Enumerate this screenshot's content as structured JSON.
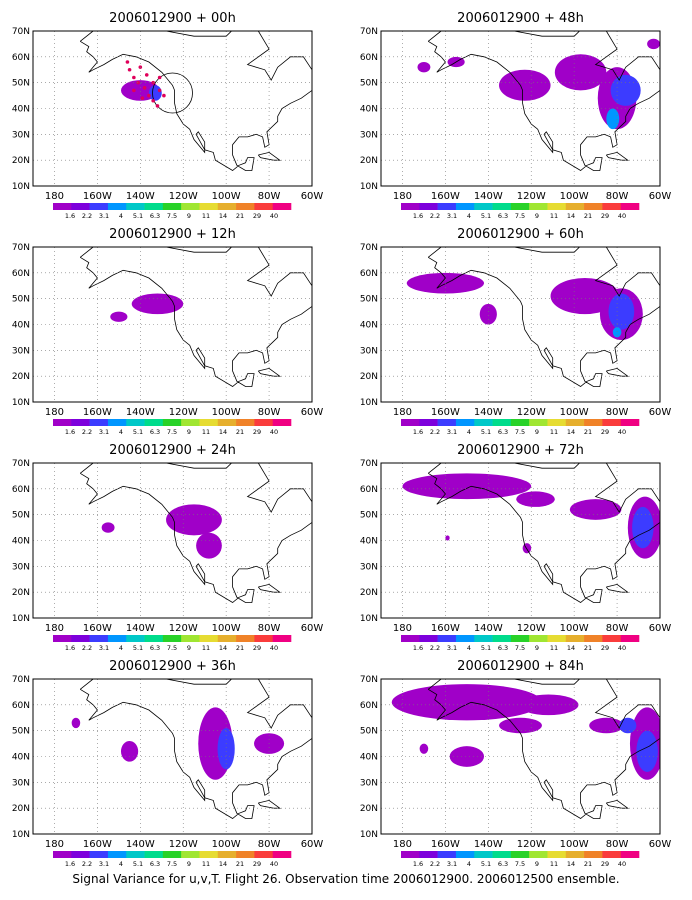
{
  "chart_data": [
    {
      "type": "contour-map",
      "title": "2006012900 + 00h",
      "xticks": [
        "180",
        "160W",
        "140W",
        "120W",
        "100W",
        "80W",
        "60W"
      ],
      "yticks": [
        "10N",
        "20N",
        "30N",
        "40N",
        "50N",
        "60N",
        "70N"
      ],
      "xlim": [
        -190,
        -60
      ],
      "ylim": [
        10,
        70
      ],
      "grid": true
    },
    {
      "type": "contour-map",
      "title": "2006012900 + 48h",
      "xticks": [
        "180",
        "160W",
        "140W",
        "120W",
        "100W",
        "80W",
        "60W"
      ],
      "yticks": [
        "10N",
        "20N",
        "30N",
        "40N",
        "50N",
        "60N",
        "70N"
      ],
      "xlim": [
        -190,
        -60
      ],
      "ylim": [
        10,
        70
      ],
      "grid": true
    },
    {
      "type": "contour-map",
      "title": "2006012900 + 12h",
      "xticks": [
        "180",
        "160W",
        "140W",
        "120W",
        "100W",
        "80W",
        "60W"
      ],
      "yticks": [
        "10N",
        "20N",
        "30N",
        "40N",
        "50N",
        "60N",
        "70N"
      ],
      "xlim": [
        -190,
        -60
      ],
      "ylim": [
        10,
        70
      ],
      "grid": true
    },
    {
      "type": "contour-map",
      "title": "2006012900 + 60h",
      "xticks": [
        "180",
        "160W",
        "140W",
        "120W",
        "100W",
        "80W",
        "60W"
      ],
      "yticks": [
        "10N",
        "20N",
        "30N",
        "40N",
        "50N",
        "60N",
        "70N"
      ],
      "xlim": [
        -190,
        -60
      ],
      "ylim": [
        10,
        70
      ],
      "grid": true
    },
    {
      "type": "contour-map",
      "title": "2006012900 + 24h",
      "xticks": [
        "180",
        "160W",
        "140W",
        "120W",
        "100W",
        "80W",
        "60W"
      ],
      "yticks": [
        "10N",
        "20N",
        "30N",
        "40N",
        "50N",
        "60N",
        "70N"
      ],
      "xlim": [
        -190,
        -60
      ],
      "ylim": [
        10,
        70
      ],
      "grid": true
    },
    {
      "type": "contour-map",
      "title": "2006012900 + 72h",
      "xticks": [
        "180",
        "160W",
        "140W",
        "120W",
        "100W",
        "80W",
        "60W"
      ],
      "yticks": [
        "10N",
        "20N",
        "30N",
        "40N",
        "50N",
        "60N",
        "70N"
      ],
      "xlim": [
        -190,
        -60
      ],
      "ylim": [
        10,
        70
      ],
      "grid": true
    },
    {
      "type": "contour-map",
      "title": "2006012900 + 36h",
      "xticks": [
        "180",
        "160W",
        "140W",
        "120W",
        "100W",
        "80W",
        "60W"
      ],
      "yticks": [
        "10N",
        "20N",
        "30N",
        "40N",
        "50N",
        "60N",
        "70N"
      ],
      "xlim": [
        -190,
        -60
      ],
      "ylim": [
        10,
        70
      ],
      "grid": true
    },
    {
      "type": "contour-map",
      "title": "2006012900 + 84h",
      "xticks": [
        "180",
        "160W",
        "140W",
        "120W",
        "100W",
        "80W",
        "60W"
      ],
      "yticks": [
        "10N",
        "20N",
        "30N",
        "40N",
        "50N",
        "60N",
        "70N"
      ],
      "xlim": [
        -190,
        -60
      ],
      "ylim": [
        10,
        70
      ],
      "grid": true
    }
  ],
  "colorbar": {
    "labels": [
      "1.6",
      "2.2",
      "3.1",
      "4",
      "5.1",
      "6.3",
      "7.5",
      "9",
      "11",
      "14",
      "21",
      "29",
      "40"
    ],
    "colors": [
      "#a000c8",
      "#7d00dc",
      "#3c3cff",
      "#0096ff",
      "#00c8c8",
      "#00dc8c",
      "#28d228",
      "#a0e632",
      "#e6dc32",
      "#e6af2d",
      "#f08228",
      "#fa3c3c",
      "#f00082"
    ]
  },
  "caption": "Signal Variance for u,v,T. Flight 26. Observation time 2006012900. 2006012500 ensemble."
}
